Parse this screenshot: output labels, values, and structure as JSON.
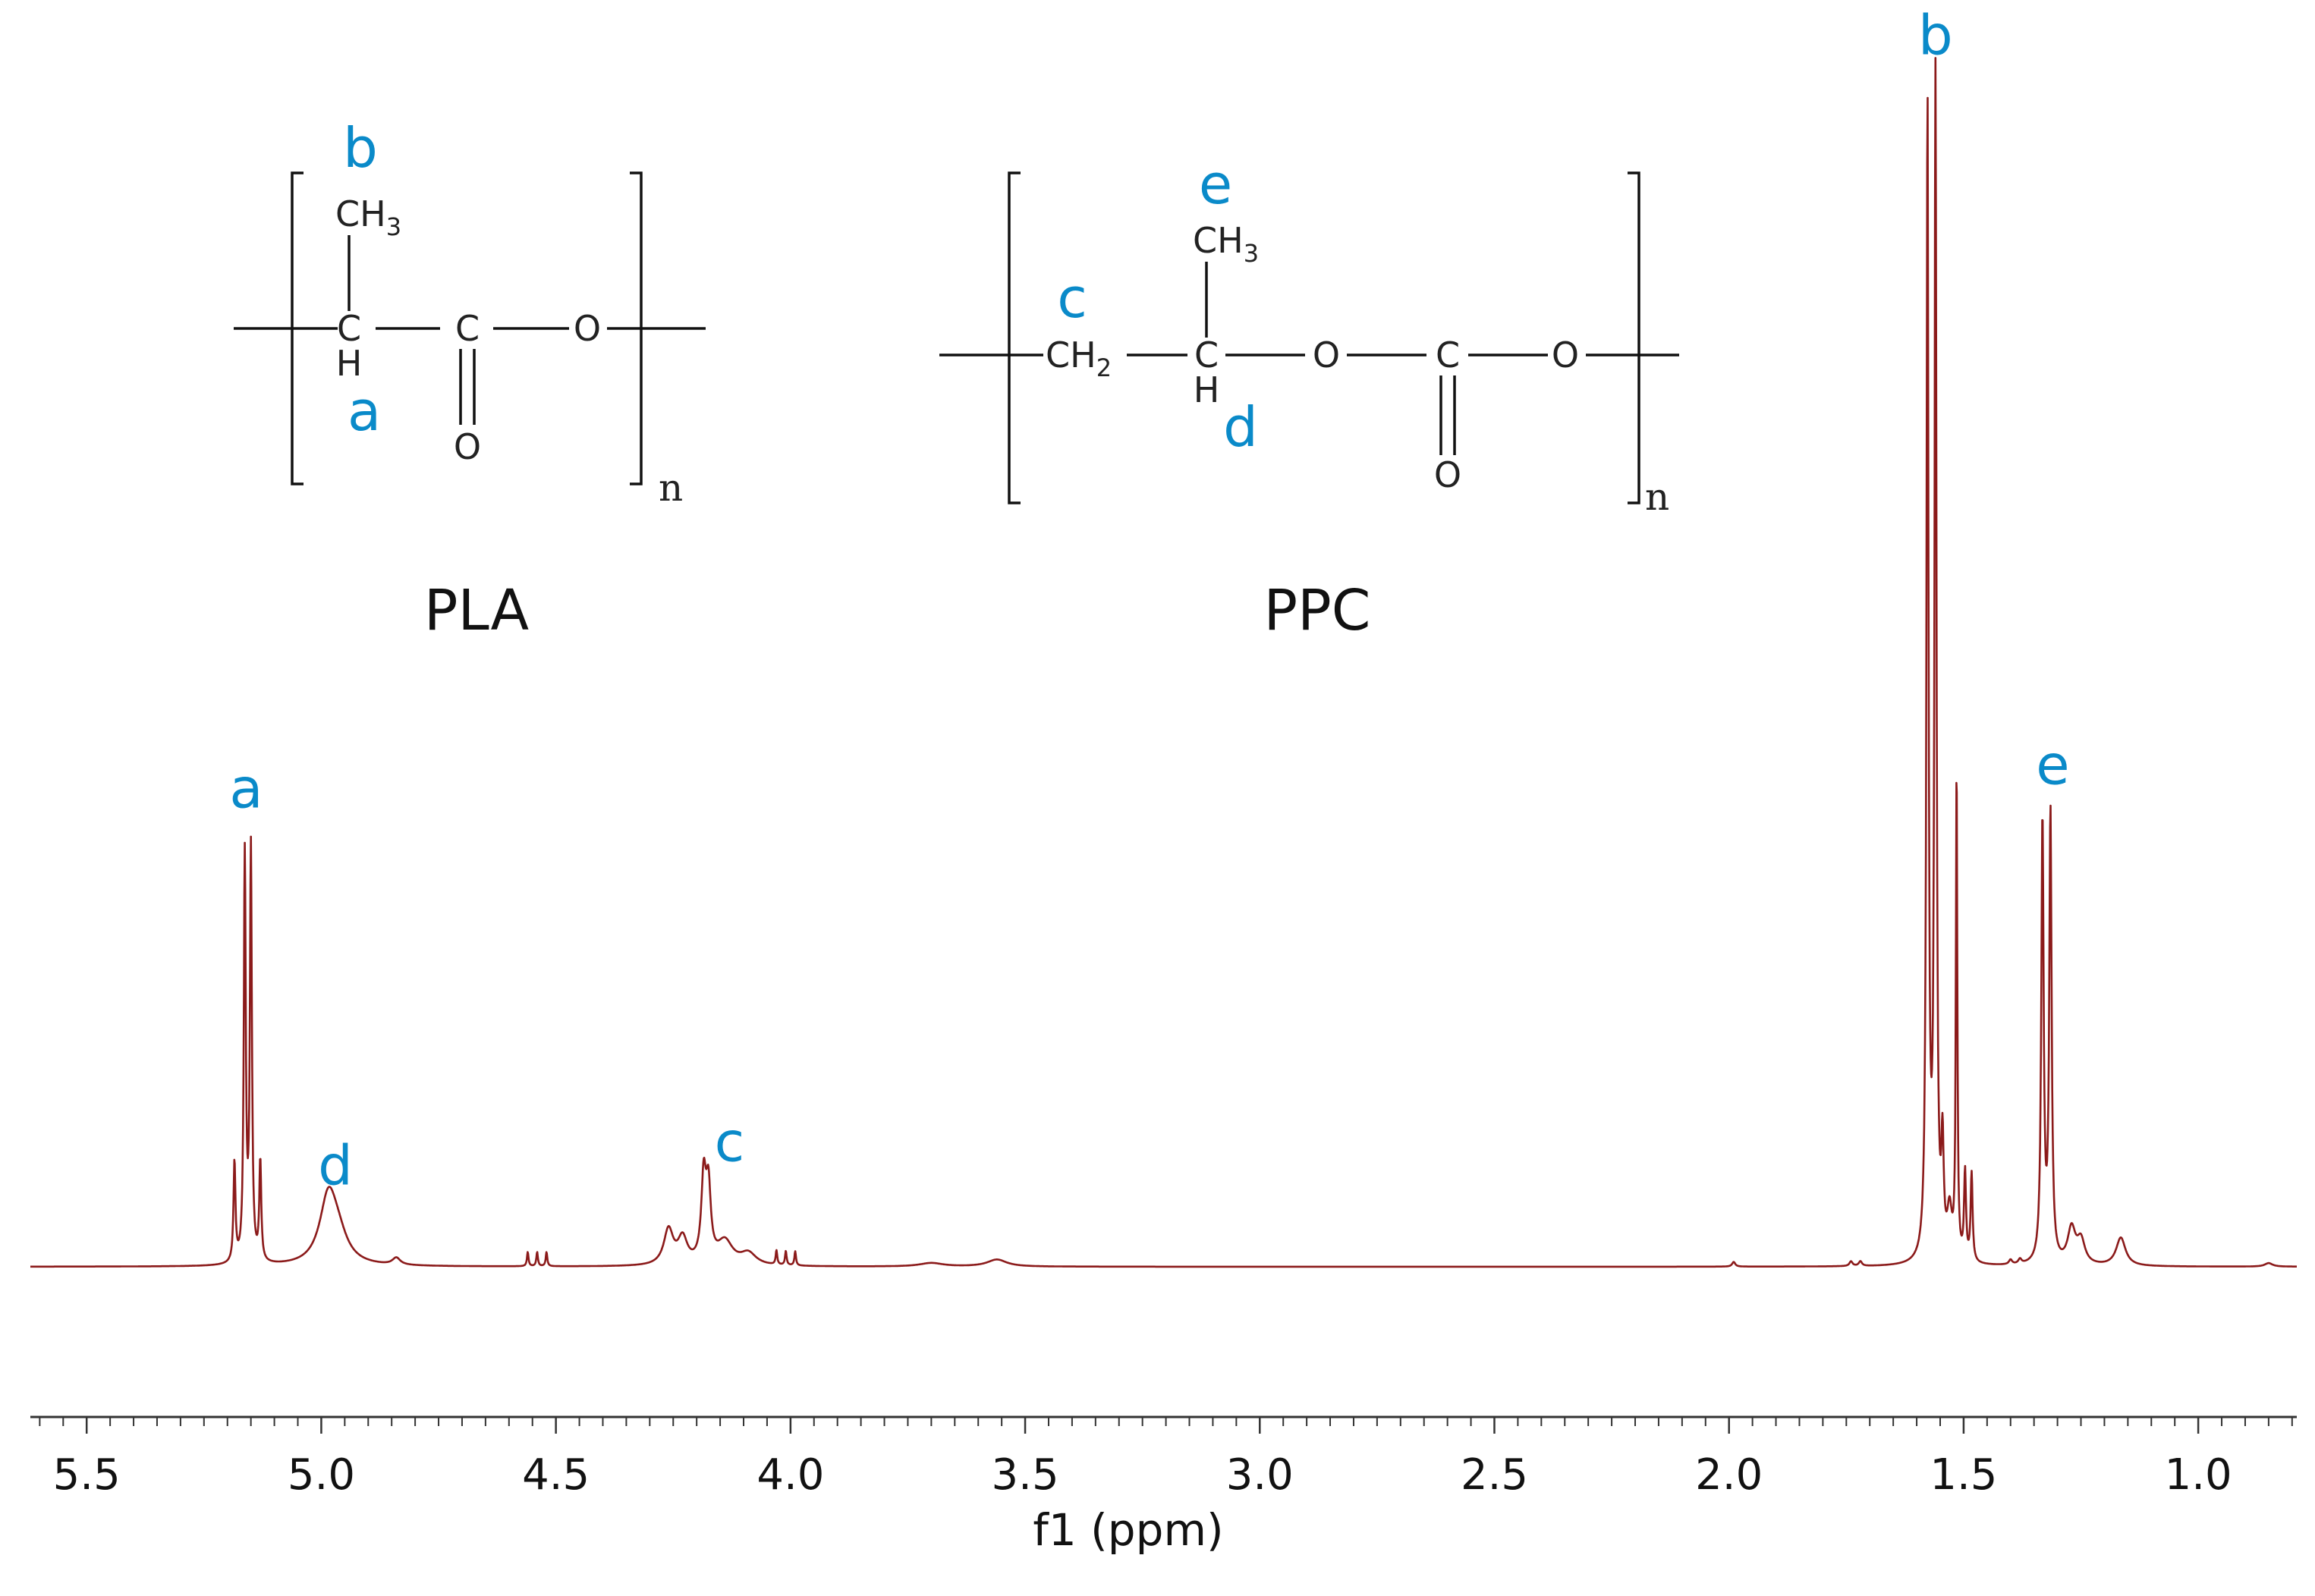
{
  "chart_data": {
    "type": "line",
    "xlabel": "f1 (ppm)",
    "xlim": [
      5.62,
      0.79
    ],
    "x_reversed": true,
    "ylim": [
      -0.12,
      1.0
    ],
    "x_ticks": [
      "5.5",
      "5.0",
      "4.5",
      "4.0",
      "3.5",
      "3.0",
      "2.5",
      "2.0",
      "1.5",
      "1.0"
    ],
    "x_tick_values": [
      5.5,
      5.0,
      4.5,
      4.0,
      3.5,
      3.0,
      2.5,
      2.0,
      1.5,
      1.0
    ],
    "minor_tick_step": 0.05,
    "line_color": "#8b1a1a",
    "peaks": [
      {
        "x": 5.185,
        "h": 0.085,
        "w": 0.0025
      },
      {
        "x": 5.163,
        "h": 0.345,
        "w": 0.0025
      },
      {
        "x": 5.15,
        "h": 0.35,
        "w": 0.0025
      },
      {
        "x": 5.13,
        "h": 0.085,
        "w": 0.0025
      },
      {
        "x": 4.985,
        "h": 0.055,
        "w": 0.022
      },
      {
        "x": 4.965,
        "h": 0.02,
        "w": 0.025
      },
      {
        "x": 4.84,
        "h": 0.006,
        "w": 0.01
      },
      {
        "x": 4.56,
        "h": 0.012,
        "w": 0.002
      },
      {
        "x": 4.54,
        "h": 0.012,
        "w": 0.002
      },
      {
        "x": 4.52,
        "h": 0.012,
        "w": 0.002
      },
      {
        "x": 4.26,
        "h": 0.03,
        "w": 0.012
      },
      {
        "x": 4.23,
        "h": 0.022,
        "w": 0.012
      },
      {
        "x": 4.185,
        "h": 0.07,
        "w": 0.006
      },
      {
        "x": 4.175,
        "h": 0.06,
        "w": 0.006
      },
      {
        "x": 4.14,
        "h": 0.02,
        "w": 0.02
      },
      {
        "x": 4.09,
        "h": 0.01,
        "w": 0.02
      },
      {
        "x": 4.03,
        "h": 0.012,
        "w": 0.002
      },
      {
        "x": 4.01,
        "h": 0.012,
        "w": 0.002
      },
      {
        "x": 3.99,
        "h": 0.012,
        "w": 0.002
      },
      {
        "x": 3.7,
        "h": 0.003,
        "w": 0.03
      },
      {
        "x": 3.56,
        "h": 0.006,
        "w": 0.025
      },
      {
        "x": 1.99,
        "h": 0.004,
        "w": 0.004
      },
      {
        "x": 1.74,
        "h": 0.004,
        "w": 0.004
      },
      {
        "x": 1.72,
        "h": 0.004,
        "w": 0.004
      },
      {
        "x": 1.577,
        "h": 0.98,
        "w": 0.0025
      },
      {
        "x": 1.56,
        "h": 1.0,
        "w": 0.0025
      },
      {
        "x": 1.545,
        "h": 0.09,
        "w": 0.003
      },
      {
        "x": 1.53,
        "h": 0.04,
        "w": 0.006
      },
      {
        "x": 1.515,
        "h": 0.42,
        "w": 0.0018
      },
      {
        "x": 1.497,
        "h": 0.075,
        "w": 0.0025
      },
      {
        "x": 1.483,
        "h": 0.075,
        "w": 0.0025
      },
      {
        "x": 1.4,
        "h": 0.004,
        "w": 0.004
      },
      {
        "x": 1.38,
        "h": 0.004,
        "w": 0.004
      },
      {
        "x": 1.332,
        "h": 0.375,
        "w": 0.003
      },
      {
        "x": 1.315,
        "h": 0.38,
        "w": 0.003
      },
      {
        "x": 1.27,
        "h": 0.03,
        "w": 0.01
      },
      {
        "x": 1.25,
        "h": 0.02,
        "w": 0.01
      },
      {
        "x": 1.165,
        "h": 0.024,
        "w": 0.012
      },
      {
        "x": 0.85,
        "h": 0.003,
        "w": 0.01
      }
    ],
    "annotations": [
      {
        "label": "a",
        "x": 5.16,
        "y": 0.39
      },
      {
        "label": "d",
        "x": 4.97,
        "y": 0.07
      },
      {
        "label": "c",
        "x": 4.13,
        "y": 0.09
      },
      {
        "label": "b",
        "x": 1.56,
        "y": 1.03
      },
      {
        "label": "e",
        "x": 1.31,
        "y": 0.41
      }
    ]
  },
  "structures": {
    "pla": {
      "name": "PLA",
      "labels": {
        "b": "b",
        "a": "a"
      },
      "atoms": {
        "c1": "C",
        "h": "H",
        "c2": "C",
        "o_bridge": "O",
        "o_carbonyl": "O",
        "ch3_main": "CH",
        "ch3_sub": "3"
      },
      "repeat": "n"
    },
    "ppc": {
      "name": "PPC",
      "labels": {
        "e": "e",
        "c": "c",
        "d": "d"
      },
      "atoms": {
        "ch2_main": "CH",
        "ch2_sub": "2",
        "c1": "C",
        "h": "H",
        "o1": "O",
        "c2": "C",
        "o2": "O",
        "o_carbonyl": "O",
        "ch3_main": "CH",
        "ch3_sub": "3"
      },
      "repeat": "n"
    }
  }
}
